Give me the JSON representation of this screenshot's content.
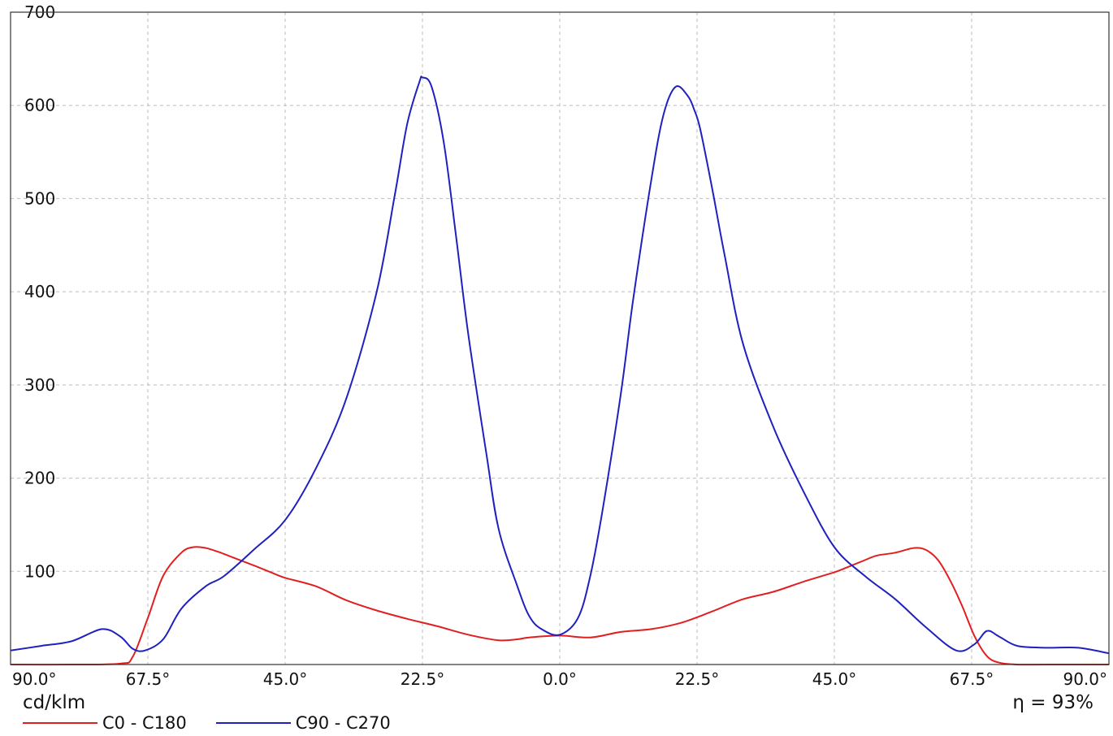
{
  "chart_data": {
    "type": "line",
    "xlabel": "",
    "ylabel": "",
    "unit_label": "cd/klm",
    "efficiency_label": "η = 93%",
    "ylim": [
      0,
      700
    ],
    "xlim": [
      -90,
      90
    ],
    "y_ticks": [
      100,
      200,
      300,
      400,
      500,
      600,
      700
    ],
    "x_ticks": [
      -90,
      -67.5,
      -45,
      -22.5,
      0,
      22.5,
      45,
      67.5,
      90
    ],
    "x_tick_labels": [
      "90.0°",
      "67.5°",
      "45.0°",
      "22.5°",
      "0.0°",
      "22.5°",
      "45.0°",
      "67.5°",
      "90.0°"
    ],
    "grid": true,
    "legend_position": "bottom-left",
    "series": [
      {
        "name": "C0 - C180",
        "color": "#e02020",
        "x": [
          -90,
          -80,
          -72,
          -70,
          -67.5,
          -65,
          -62,
          -60,
          -58,
          -56,
          -54,
          -50,
          -47,
          -45,
          -40,
          -35,
          -30,
          -25,
          -20,
          -15,
          -10,
          -7,
          -5,
          0,
          5,
          10,
          15,
          20,
          25,
          30,
          35,
          40,
          45,
          47,
          50,
          52,
          55,
          58,
          60,
          62,
          64,
          66,
          68,
          70,
          72,
          75,
          80,
          90
        ],
        "values": [
          0,
          0,
          1,
          8,
          50,
          95,
          120,
          126,
          125,
          121,
          116,
          106,
          98,
          93,
          84,
          69,
          58,
          49,
          41,
          32,
          26,
          27,
          29,
          31,
          29,
          35,
          38,
          45,
          57,
          70,
          78,
          89,
          99,
          104,
          112,
          117,
          120,
          125,
          123,
          112,
          90,
          62,
          30,
          9,
          2,
          0,
          0,
          0
        ]
      },
      {
        "name": "C90 - C270",
        "color": "#2020c0",
        "x": [
          -90,
          -85,
          -80,
          -75,
          -72,
          -70,
          -68,
          -65,
          -62,
          -58,
          -55,
          -50,
          -45,
          -40,
          -35,
          -30,
          -27,
          -25,
          -23,
          -22.5,
          -21,
          -19,
          -17,
          -15,
          -12,
          -10,
          -7,
          -5,
          -3,
          0,
          3,
          5,
          7,
          10,
          12,
          15,
          17,
          19,
          21,
          22,
          23,
          25,
          27,
          30,
          35,
          40,
          45,
          50,
          55,
          60,
          65,
          68,
          70,
          72,
          75,
          80,
          85,
          90
        ],
        "values": [
          15,
          20,
          25,
          38,
          30,
          17,
          15,
          27,
          60,
          84,
          95,
          124,
          155,
          210,
          285,
          400,
          505,
          580,
          625,
          630,
          620,
          560,
          460,
          355,
          225,
          145,
          85,
          52,
          38,
          32,
          50,
          95,
          165,
          290,
          390,
          520,
          590,
          620,
          610,
          596,
          575,
          510,
          440,
          345,
          255,
          185,
          126,
          95,
          70,
          40,
          15,
          22,
          36,
          30,
          20,
          18,
          18,
          12
        ]
      }
    ]
  }
}
